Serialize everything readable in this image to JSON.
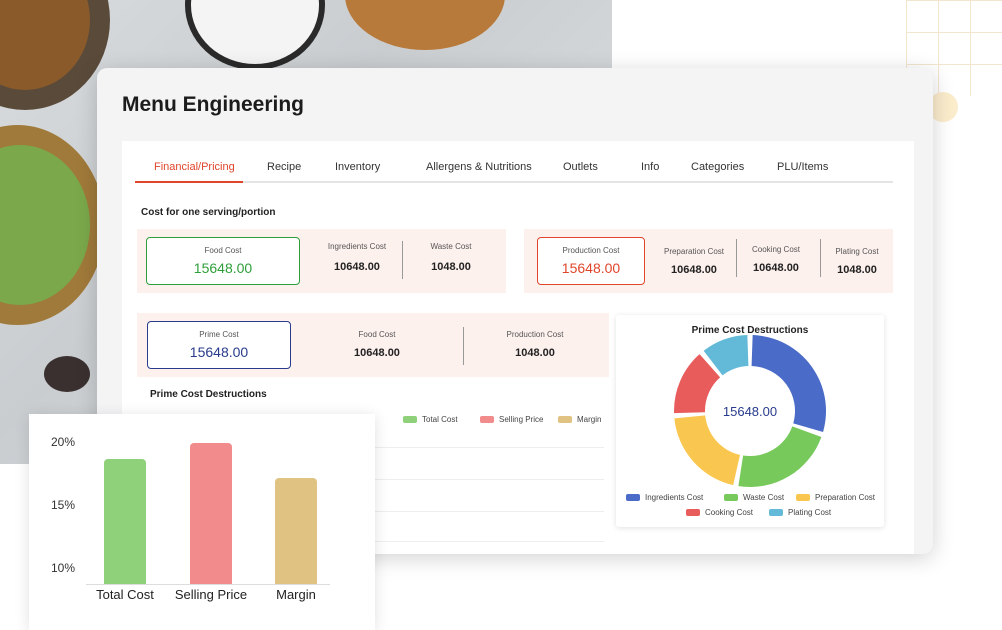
{
  "page": {
    "title": "Menu Engineering"
  },
  "tabs": [
    {
      "label": "Financial/Pricing",
      "active": true
    },
    {
      "label": "Recipe",
      "active": false
    },
    {
      "label": "Inventory",
      "active": false
    },
    {
      "label": "Allergens & Nutritions",
      "active": false
    },
    {
      "label": "Outlets",
      "active": false
    },
    {
      "label": "Info",
      "active": false
    },
    {
      "label": "Categories",
      "active": false
    },
    {
      "label": "PLU/Items",
      "active": false
    }
  ],
  "cost_section": {
    "heading": "Cost for one serving/portion",
    "food_cost": {
      "label": "Food Cost",
      "value": "15648.00",
      "color": "#2e9e3a"
    },
    "ingredients_cost": {
      "label": "Ingredients Cost",
      "value": "10648.00"
    },
    "waste_cost": {
      "label": "Waste Cost",
      "value": "1048.00"
    },
    "production_cost": {
      "label": "Production Cost",
      "value": "15648.00",
      "color": "#e0452b"
    },
    "preparation_cost": {
      "label": "Preparation Cost",
      "value": "10648.00"
    },
    "cooking_cost": {
      "label": "Cooking Cost",
      "value": "10648.00"
    },
    "plating_cost": {
      "label": "Plating Cost",
      "value": "1048.00"
    }
  },
  "prime_section": {
    "prime_cost": {
      "label": "Prime Cost",
      "value": "15648.00",
      "color": "#283b8c"
    },
    "food_cost": {
      "label": "Food Cost",
      "value": "10648.00"
    },
    "production_cost": {
      "label": "Production Cost",
      "value": "1048.00"
    }
  },
  "bar_section": {
    "heading": "Prime Cost Destructions",
    "legend": [
      {
        "label": "Total  Cost",
        "color": "#8fd07a"
      },
      {
        "label": "Selling Price",
        "color": "#f28b8b"
      },
      {
        "label": "Margin",
        "color": "#e0c382"
      }
    ]
  },
  "donut": {
    "title": "Prime Cost Destructions",
    "center_value": "15648.00",
    "legend": [
      {
        "label": "Ingredients Cost",
        "color": "#4a6cc8"
      },
      {
        "label": "Waste Cost",
        "color": "#78c95c"
      },
      {
        "label": "Preparation Cost",
        "color": "#f9c74f"
      },
      {
        "label": "Cooking Cost",
        "color": "#e85c5c"
      },
      {
        "label": "Plating Cost",
        "color": "#63bad8"
      }
    ]
  },
  "chart_data": {
    "type": "bar",
    "categories": [
      "Total Cost",
      "Selling Price",
      "Margin"
    ],
    "values": [
      18.7,
      20.0,
      17.2
    ],
    "colors": [
      "#8fd07a",
      "#f28b8b",
      "#e0c382"
    ],
    "yticks": [
      "20%",
      "15%",
      "10%"
    ],
    "ylim": [
      8.8,
      20.3
    ],
    "xlabel": "",
    "ylabel": ""
  },
  "donut_data": {
    "type": "pie",
    "labels": [
      "Ingredients Cost",
      "Waste Cost",
      "Preparation Cost",
      "Cooking Cost",
      "Plating Cost"
    ],
    "values": [
      30,
      23,
      21,
      15,
      11
    ]
  }
}
